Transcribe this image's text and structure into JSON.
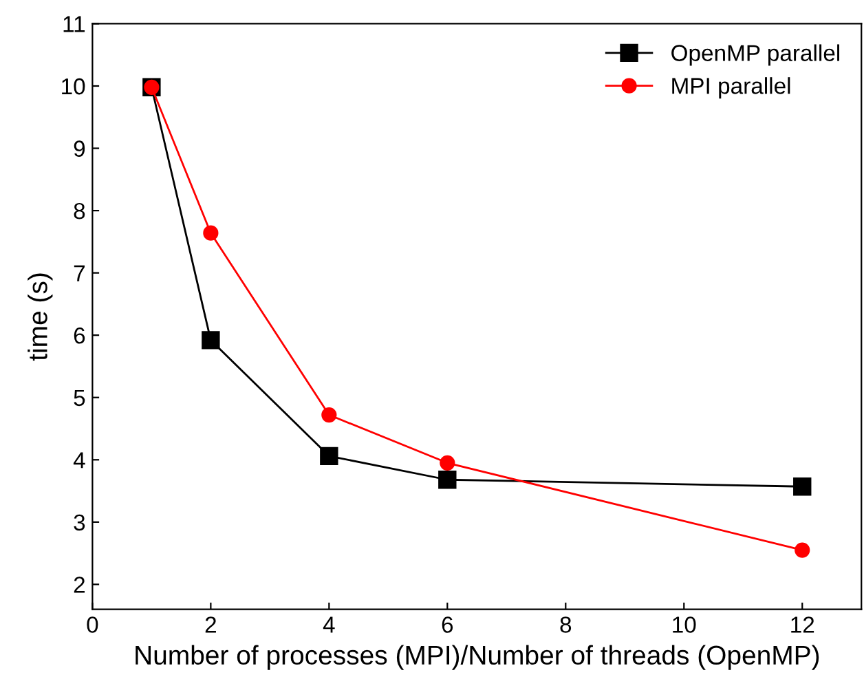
{
  "chart_data": {
    "type": "line",
    "xlabel": "Number of processes (MPI)/Number of threads (OpenMP)",
    "ylabel": "time (s)",
    "x": [
      1,
      2,
      4,
      6,
      12
    ],
    "series": [
      {
        "name": "OpenMP parallel",
        "color": "#000000",
        "marker": "square",
        "values": [
          9.98,
          5.92,
          4.06,
          3.68,
          3.57
        ]
      },
      {
        "name": "MPI parallel",
        "color": "#ff0000",
        "marker": "circle",
        "values": [
          9.98,
          7.64,
          4.72,
          3.95,
          2.55
        ]
      }
    ],
    "xlim": [
      0,
      13
    ],
    "xticks": [
      0,
      2,
      4,
      6,
      8,
      10,
      12
    ],
    "ylim": [
      1.6,
      11
    ],
    "yticks": [
      2,
      3,
      4,
      5,
      6,
      7,
      8,
      9,
      10,
      11
    ],
    "grid": false,
    "legend": "top right",
    "line_style": "solid"
  }
}
